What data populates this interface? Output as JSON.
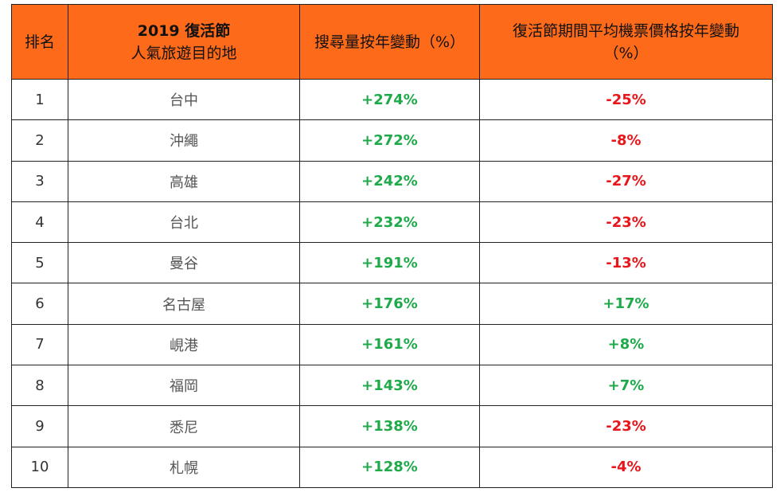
{
  "header": {
    "rank": "排名",
    "destination_year": "2019 復活節",
    "destination_label": "人氣旅遊目的地",
    "search_change": "搜尋量按年變動（%）",
    "price_change_line1": "復活節期間平均機票價格按年變動",
    "price_change_line2": "（%）"
  },
  "colors": {
    "header_bg": "#fd6a1a",
    "positive": "#1faa4a",
    "negative": "#e8151b"
  },
  "rows": [
    {
      "rank": "1",
      "city": "台中",
      "search": "+274%",
      "price": "-25%",
      "price_dir": "neg"
    },
    {
      "rank": "2",
      "city": "沖繩",
      "search": "+272%",
      "price": "-8%",
      "price_dir": "neg"
    },
    {
      "rank": "3",
      "city": "高雄",
      "search": "+242%",
      "price": "-27%",
      "price_dir": "neg"
    },
    {
      "rank": "4",
      "city": "台北",
      "search": "+232%",
      "price": "-23%",
      "price_dir": "neg"
    },
    {
      "rank": "5",
      "city": "曼谷",
      "search": "+191%",
      "price": "-13%",
      "price_dir": "neg"
    },
    {
      "rank": "6",
      "city": "名古屋",
      "search": "+176%",
      "price": "+17%",
      "price_dir": "pos"
    },
    {
      "rank": "7",
      "city": "峴港",
      "search": "+161%",
      "price": "+8%",
      "price_dir": "pos"
    },
    {
      "rank": "8",
      "city": "福岡",
      "search": "+143%",
      "price": "+7%",
      "price_dir": "pos"
    },
    {
      "rank": "9",
      "city": "悉尼",
      "search": "+138%",
      "price": "-23%",
      "price_dir": "neg"
    },
    {
      "rank": "10",
      "city": "札幌",
      "search": "+128%",
      "price": "-4%",
      "price_dir": "neg"
    }
  ]
}
